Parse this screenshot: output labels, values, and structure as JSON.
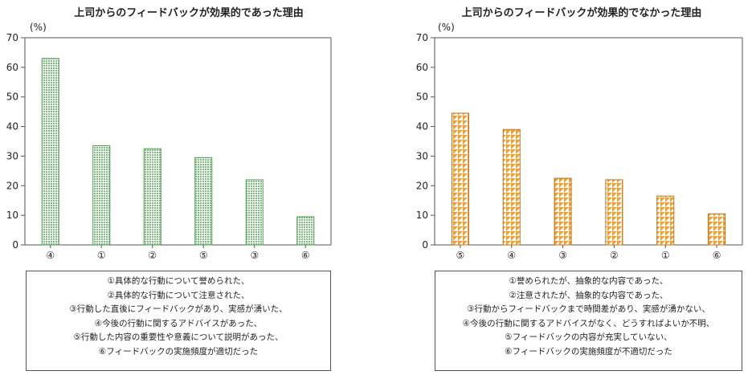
{
  "chart_data": [
    {
      "type": "bar",
      "title": "上司からのフィードバックが効果的であった理由",
      "unit": "(%)",
      "categories": [
        "④",
        "①",
        "②",
        "⑤",
        "③",
        "⑥"
      ],
      "values": [
        63,
        33.5,
        32.5,
        29.5,
        22,
        9.5
      ],
      "ylim": [
        0,
        70
      ],
      "yticks": [
        "0",
        "10",
        "20",
        "30",
        "40",
        "50",
        "60",
        "70"
      ],
      "bar_color": "#8cc88c",
      "legend": [
        "①具体的な行動について誉められた、",
        "②具体的な行動について注意された、",
        "③行動した直後にフィードバックがあり、実感が湧いた、",
        "④今後の行動に関するアドバイスがあった、",
        "⑤行動した内容の重要性や意義について説明があった、",
        "⑥フィードバックの実施頻度が適切だった"
      ]
    },
    {
      "type": "bar",
      "title": "上司からのフィードバックが効果的でなかった理由",
      "unit": "(%)",
      "categories": [
        "⑤",
        "④",
        "③",
        "②",
        "①",
        "⑥"
      ],
      "values": [
        44.5,
        39,
        22.5,
        22,
        16.5,
        10.5
      ],
      "ylim": [
        0,
        70
      ],
      "yticks": [
        "0",
        "10",
        "20",
        "30",
        "40",
        "50",
        "60",
        "70"
      ],
      "bar_color": "#f0a030",
      "legend": [
        "①誉められたが、抽象的な内容であった、",
        "②注意されたが、抽象的な内容であった、",
        "③行動からフィードバックまで時間差があり、実感が湧かない、",
        "④今後の行動に関するアドバイスがなく、どうすればよいか不明、",
        "⑤フィードバックの内容が充実していない、",
        "⑥フィードバックの実施頻度が不適切だった"
      ]
    }
  ]
}
